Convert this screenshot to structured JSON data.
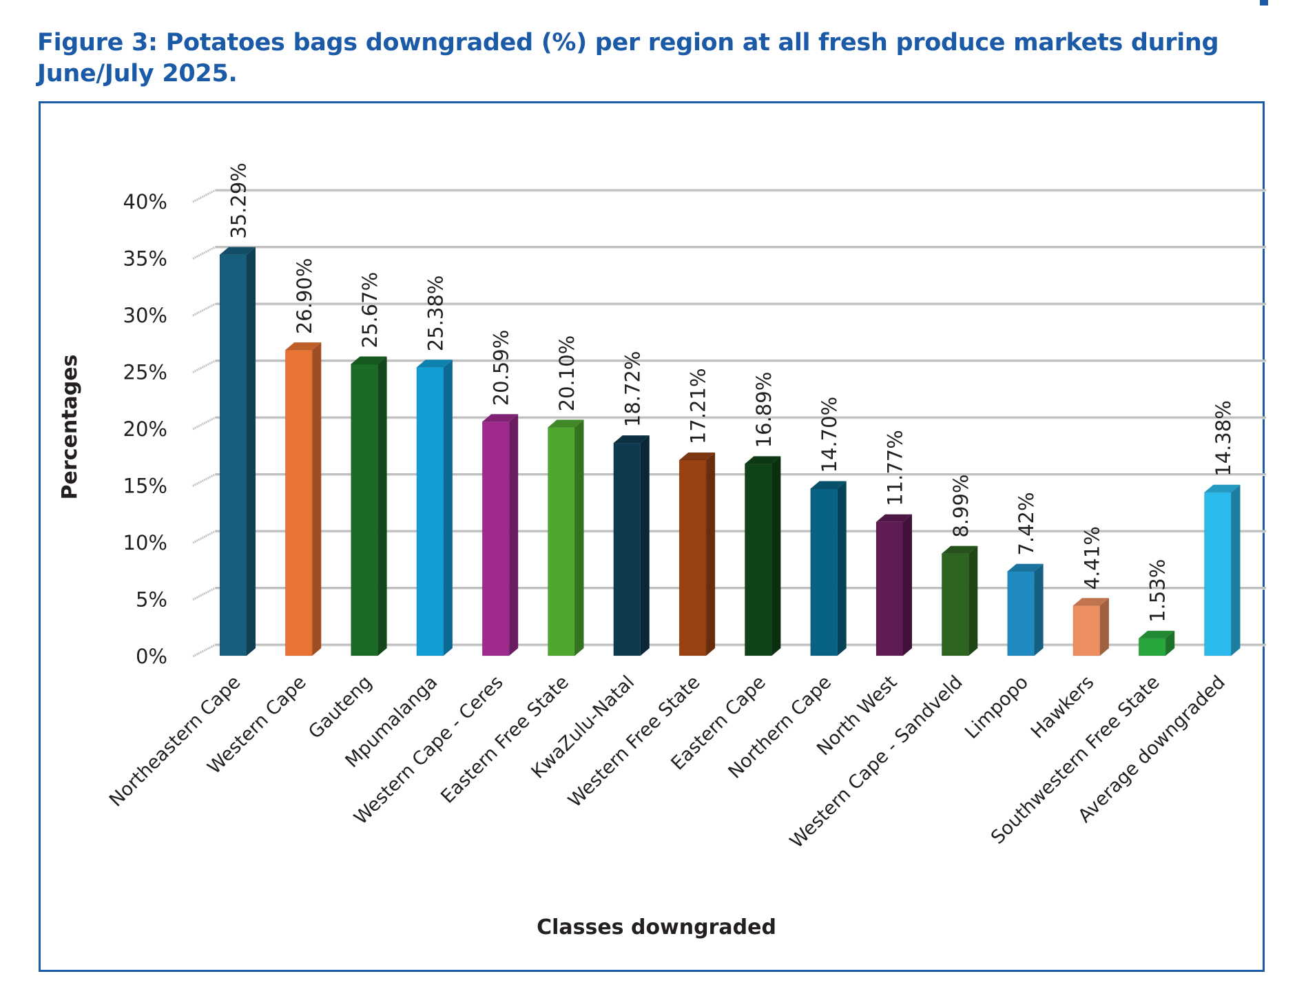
{
  "figure": {
    "title": "Figure 3: Potatoes bags downgraded (%) per region at all fresh produce markets during June/July 2025."
  },
  "chart_data": {
    "type": "bar",
    "style": "3d-column",
    "title": "",
    "xlabel": "Classes downgraded",
    "ylabel": "Percentages",
    "ylim": [
      0,
      40
    ],
    "yticks": [
      0,
      5,
      10,
      15,
      20,
      25,
      30,
      35,
      40
    ],
    "ytick_labels": [
      "0%",
      "5%",
      "10%",
      "15%",
      "20%",
      "25%",
      "30%",
      "35%",
      "40%"
    ],
    "grid": true,
    "legend": "none",
    "categories": [
      "Northeastern Cape",
      "Western Cape",
      "Gauteng",
      "Mpumalanga",
      "Western Cape - Ceres",
      "Eastern Free State",
      "KwaZulu-Natal",
      "Western Free State",
      "Eastern Cape",
      "Northern Cape",
      "North West",
      "Western Cape - Sandveld",
      "Limpopo",
      "Hawkers",
      "Southwestern Free State",
      "Average downgraded"
    ],
    "values": [
      35.29,
      26.9,
      25.67,
      25.38,
      20.59,
      20.1,
      18.72,
      17.21,
      16.89,
      14.7,
      11.77,
      8.99,
      7.42,
      4.41,
      1.53,
      14.38
    ],
    "data_labels": [
      "35.29%",
      "26.90%",
      "25.67%",
      "25.38%",
      "20.59%",
      "20.10%",
      "18.72%",
      "17.21%",
      "16.89%",
      "14.70%",
      "11.77%",
      "8.99%",
      "7.42%",
      "4.41%",
      "1.53%",
      "14.38%"
    ],
    "colors": [
      "#175e7e",
      "#e87332",
      "#1b6b26",
      "#119ed6",
      "#9e2a8e",
      "#4ea72e",
      "#0d3a4f",
      "#984212",
      "#0f4418",
      "#086283",
      "#5f1b54",
      "#2d6420",
      "#1f8bc0",
      "#ec8e60",
      "#27a73c",
      "#2bbaec"
    ]
  },
  "colors": {
    "title": "#1b5aa6",
    "frame": "#1b5aa6",
    "gridline": "#c8c8c8",
    "text": "#231f20"
  }
}
